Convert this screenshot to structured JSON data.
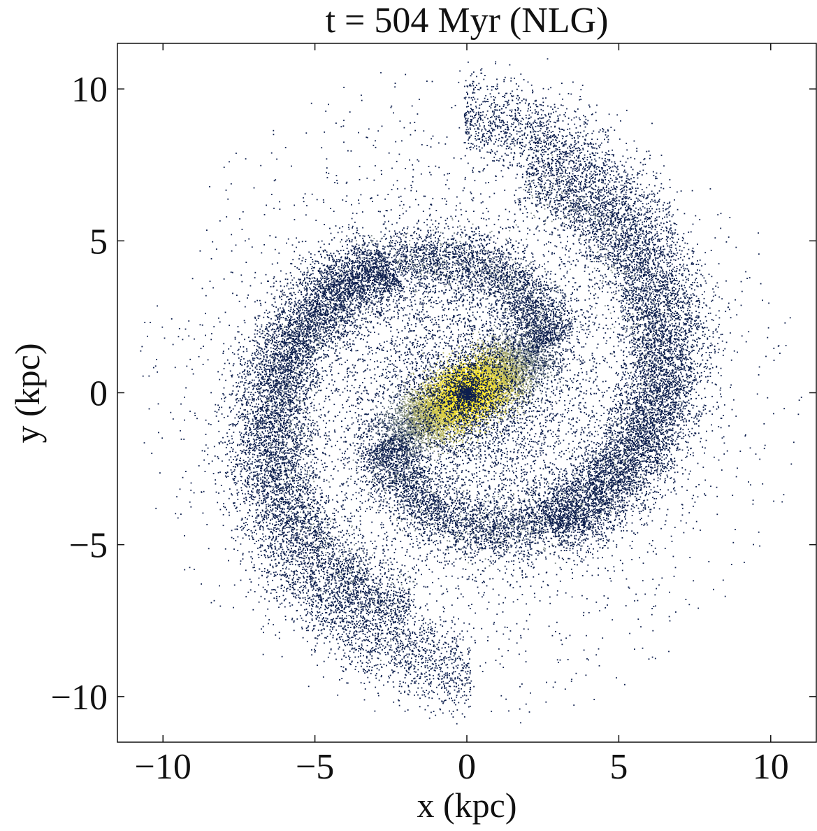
{
  "chart_data": {
    "type": "scatter",
    "title": "t = 504 Myr (NLG)",
    "xlabel": "x (kpc)",
    "ylabel": "y (kpc)",
    "xlim": [
      -11.5,
      11.5
    ],
    "ylim": [
      -11.5,
      11.5
    ],
    "x_ticks": [
      -10,
      -5,
      0,
      5,
      10
    ],
    "y_ticks": [
      -10,
      -5,
      0,
      5,
      10
    ],
    "x_tick_labels": [
      "−10",
      "−5",
      "0",
      "5",
      "10"
    ],
    "y_tick_labels": [
      "−10",
      "−5",
      "0",
      "5",
      "10"
    ],
    "grid": false,
    "legend": "none",
    "plot_kind": "2D particle density map of a barred spiral galaxy simulation snapshot",
    "structure": {
      "bar": {
        "center": [
          0,
          0
        ],
        "angle_deg": 30,
        "half_length_kpc": 3.2,
        "half_width_kpc": 1.1
      },
      "inner_ring_radius_kpc": 4.2,
      "spiral_arms": 2,
      "outer_disk_radius_kpc": 10.5
    },
    "colormap": {
      "low": "#0d1f4e",
      "mid": "#7f8c8a",
      "high": "#fde725"
    }
  }
}
